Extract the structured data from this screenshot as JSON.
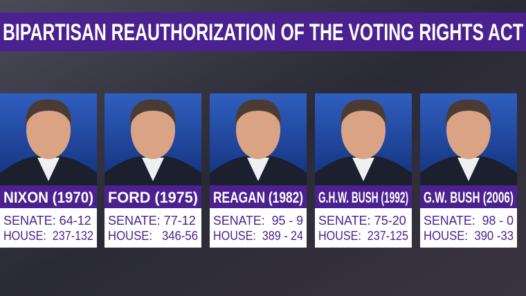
{
  "title": "BIPARTISAN REAUTHORIZATION OF THE VOTING RIGHTS ACT",
  "cards": [
    {
      "name": "NIXON (1970)",
      "senate": "SENATE: 64-12",
      "house": "HOUSE:  237-132"
    },
    {
      "name": "FORD (1975)",
      "senate": "SENATE: 77-12",
      "house": "HOUSE:   346-56"
    },
    {
      "name": "REAGAN (1982)",
      "senate": "SENATE:  95 - 9",
      "house": "HOUSE:  389 - 24"
    },
    {
      "name": "G.H.W. BUSH (1992)",
      "senate": "SENATE: 75-20",
      "house": "HOUSE:  237-125"
    },
    {
      "name": "G.W. BUSH (2006)",
      "senate": "SENATE:  98 - 0",
      "house": "HOUSE:  390 -33"
    }
  ]
}
